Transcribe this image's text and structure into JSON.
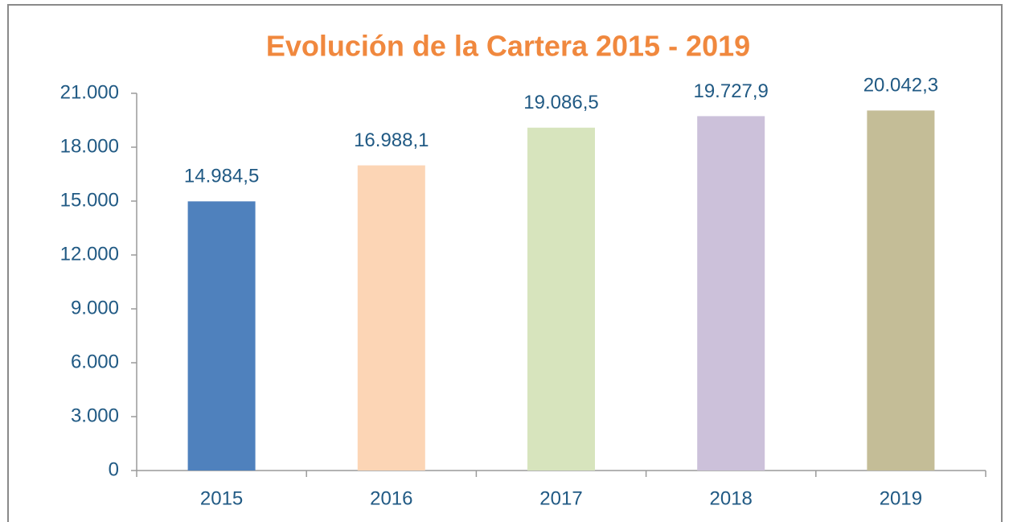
{
  "chart_data": {
    "type": "bar",
    "title": "Evolución de la Cartera 2015 - 2019",
    "categories": [
      "2015",
      "2016",
      "2017",
      "2018",
      "2019"
    ],
    "values": [
      14984.5,
      16988.1,
      19086.5,
      19727.9,
      20042.3
    ],
    "value_labels": [
      "14.984,5",
      "16.988,1",
      "19.086,5",
      "19.727,9",
      "20.042,3"
    ],
    "colors": [
      "#4f81bd",
      "#fcd5b5",
      "#d7e4bd",
      "#ccc1da",
      "#c4bd97"
    ],
    "ylim": [
      0,
      21000
    ],
    "yticks": [
      0,
      {
        "value": 3000,
        "label": "3.000"
      },
      {
        "value": 6000,
        "label": "6.000"
      },
      {
        "value": 9000,
        "label": "9.000"
      },
      {
        "value": 12000,
        "label": "12.000"
      },
      {
        "value": 15000,
        "label": "15.000"
      },
      {
        "value": 18000,
        "label": "18.000"
      },
      {
        "value": 21000,
        "label": "21.000"
      }
    ],
    "grid": false
  }
}
